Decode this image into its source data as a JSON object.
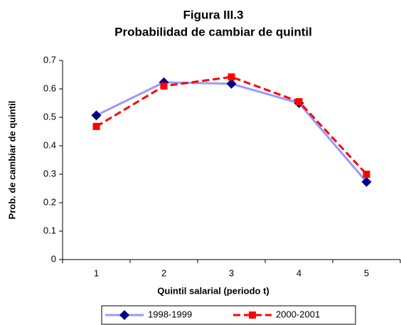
{
  "chart_data": {
    "type": "line",
    "title": "Figura III.3",
    "subtitle": "Probabilidad de cambiar de quintil",
    "x_label": "Quintil salarial (periodo t)",
    "y_label": "Prob. de cambiar de quintil",
    "categories": [
      "1",
      "2",
      "3",
      "4",
      "5"
    ],
    "series": [
      {
        "name": "1998-1999",
        "color": "#9999ff",
        "marker": "diamond",
        "marker_color": "#000080",
        "line_style": "solid",
        "values": [
          0.507,
          0.623,
          0.618,
          0.55,
          0.273
        ]
      },
      {
        "name": "2000-2001",
        "color": "#ff0000",
        "marker": "square",
        "marker_color": "#ff0000",
        "line_style": "dashed",
        "values": [
          0.468,
          0.61,
          0.642,
          0.555,
          0.3
        ]
      }
    ],
    "ylim": [
      0,
      0.7
    ],
    "yticks": [
      0,
      0.1,
      0.2,
      0.3,
      0.4,
      0.5,
      0.6,
      0.7
    ],
    "grid": false,
    "legend": "bottom"
  }
}
